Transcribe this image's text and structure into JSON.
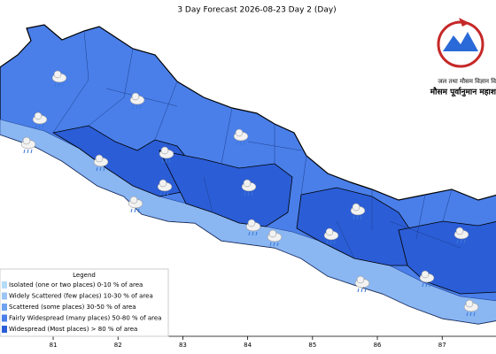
{
  "map": {
    "title": "3 Day Forecast 2026-08-23 Day 2 (Day)",
    "agency_line1": "जल तथा मौसम विज्ञान वि",
    "agency_line2": "मौसम पूर्वानुमान महाश",
    "xlim": [
      80.18,
      87.83
    ],
    "xticks": [
      81,
      82,
      83,
      84,
      85,
      86,
      87
    ],
    "legend": {
      "title": "Legend",
      "items": [
        {
          "label": "Isolated (one or two places)  0-10 % of area",
          "color": "#b5dcf7"
        },
        {
          "label": "Widely Scattered (few places)  10-30 % of area",
          "color": "#9cc4f4"
        },
        {
          "label": "Scattered (some places)  30-50 % of area",
          "color": "#6fa3ef"
        },
        {
          "label": "Fairly Widespread (many places)  50-80 % of area",
          "color": "#4a7fe9"
        },
        {
          "label": "Widespread (Most places) > 80 % of area",
          "color": "#2b5dd6"
        }
      ]
    }
  }
}
